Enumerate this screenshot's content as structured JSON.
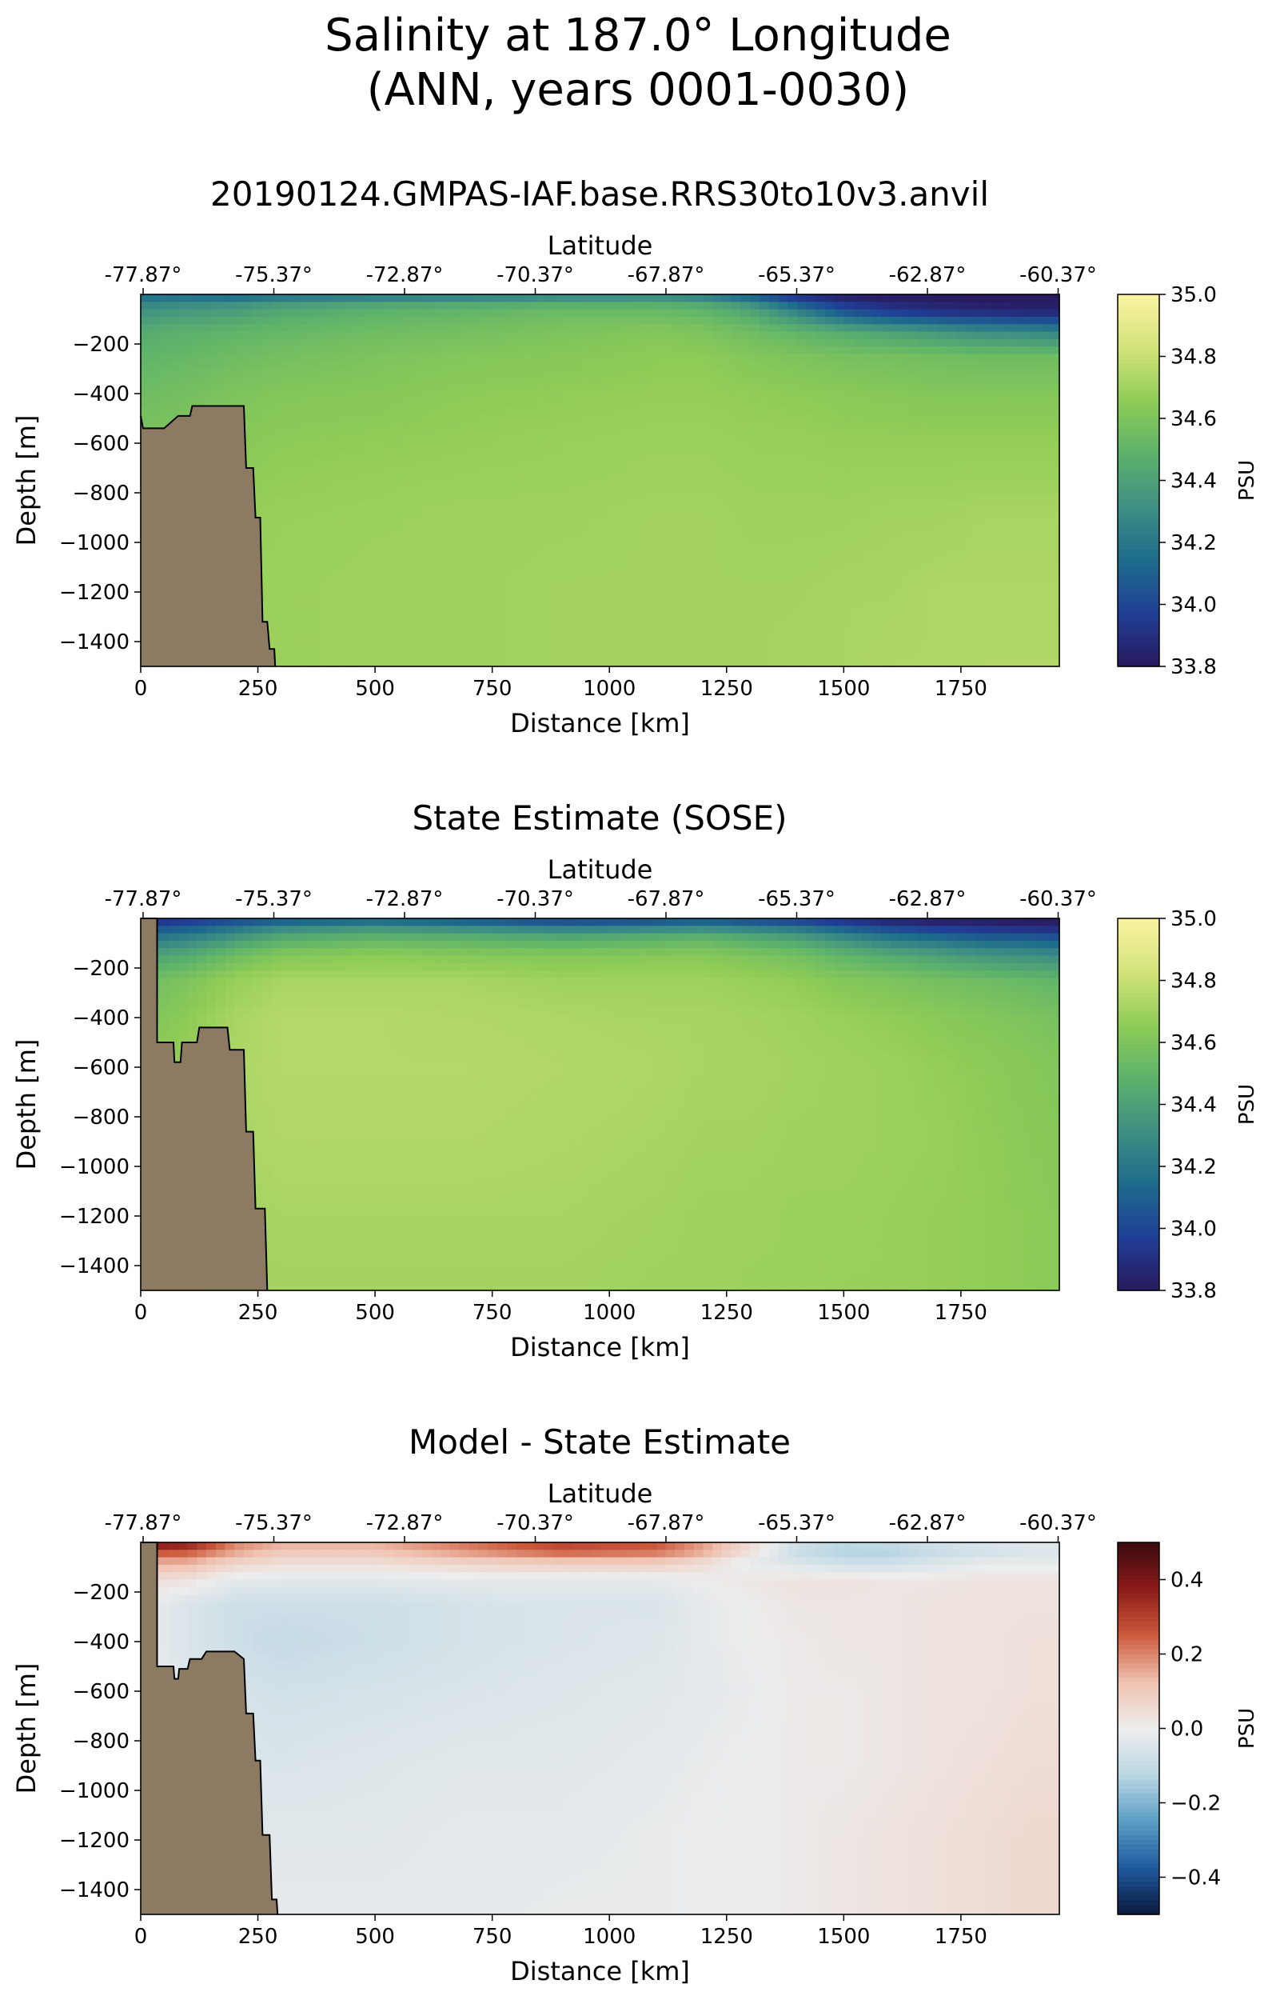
{
  "figure": {
    "title_line1": "Salinity at 187.0° Longitude",
    "title_line2": "(ANN, years 0001-0030)"
  },
  "panels": [
    {
      "title": "20190124.GMPAS-IAF.base.RRS30to10v3.anvil",
      "colorbar_label": "PSU",
      "colorbar_ticks": [
        "33.8",
        "34.0",
        "34.2",
        "34.4",
        "34.6",
        "34.8",
        "35.0"
      ]
    },
    {
      "title": "State Estimate (SOSE)",
      "colorbar_label": "PSU",
      "colorbar_ticks": [
        "33.8",
        "34.0",
        "34.2",
        "34.4",
        "34.6",
        "34.8",
        "35.0"
      ]
    },
    {
      "title": "Model - State Estimate",
      "colorbar_label": "PSU",
      "colorbar_ticks": [
        "−0.4",
        "−0.2",
        "0.0",
        "0.2",
        "0.4"
      ]
    }
  ],
  "axes": {
    "xlabel": "Distance [km]",
    "ylabel": "Depth [m]",
    "top_xlabel": "Latitude",
    "x_ticks": [
      "0",
      "250",
      "500",
      "750",
      "1000",
      "1250",
      "1500",
      "1750"
    ],
    "y_ticks": [
      "−200",
      "−400",
      "−600",
      "−800",
      "−1000",
      "−1200",
      "−1400"
    ],
    "lat_ticks": [
      "-77.87°",
      "-75.37°",
      "-72.87°",
      "-70.37°",
      "-67.87°",
      "-65.37°",
      "-62.87°",
      "-60.37°"
    ]
  },
  "colors": {
    "land": "#8c7b62",
    "salinity_cmap": [
      "#29195f",
      "#203f96",
      "#1d6c8c",
      "#3e8f83",
      "#5cb26b",
      "#8fcc56",
      "#d3e37a",
      "#fbf3a2"
    ],
    "diff_cmap": [
      "#0b1a3f",
      "#1f5a9e",
      "#5a9ec4",
      "#bcd7e4",
      "#ededed",
      "#f0c2b0",
      "#cc5a3c",
      "#8b1a18",
      "#3b0b11"
    ]
  },
  "chart_data": [
    {
      "type": "heatmap",
      "title": "20190124.GMPAS-IAF.base.RRS30to10v3.anvil",
      "xlabel": "Distance [km]",
      "ylabel": "Depth [m]",
      "top_xlabel": "Latitude",
      "xlim": [
        0,
        1960
      ],
      "ylim": [
        -1500,
        0
      ],
      "x_ticks": [
        0,
        250,
        500,
        750,
        1000,
        1250,
        1500,
        1750
      ],
      "y_ticks": [
        -200,
        -400,
        -600,
        -800,
        -1000,
        -1200,
        -1400
      ],
      "lat_ticks": [
        -77.87,
        -75.37,
        -72.87,
        -70.37,
        -67.87,
        -65.37,
        -62.87,
        -60.37
      ],
      "colorbar": {
        "label": "PSU",
        "range": [
          33.8,
          35.0
        ],
        "ticks": [
          33.8,
          34.0,
          34.2,
          34.4,
          34.6,
          34.8,
          35.0
        ]
      },
      "x_km": [
        0,
        100,
        200,
        300,
        500,
        700,
        900,
        1100,
        1200,
        1300,
        1400,
        1500,
        1600,
        1700,
        1800,
        1900,
        1960
      ],
      "depth_m": [
        0,
        -30,
        -80,
        -150,
        -250,
        -400,
        -600,
        -900,
        -1200,
        -1500
      ],
      "values": [
        [
          34.12,
          34.1,
          34.05,
          34.1,
          34.12,
          34.15,
          34.18,
          34.2,
          34.15,
          34.0,
          33.85,
          33.8,
          33.8,
          33.8,
          33.8,
          33.8,
          33.8
        ],
        [
          34.25,
          34.28,
          34.3,
          34.35,
          34.4,
          34.42,
          34.45,
          34.45,
          34.42,
          34.3,
          34.05,
          33.9,
          33.85,
          33.82,
          33.8,
          33.8,
          33.8
        ],
        [
          34.35,
          34.38,
          34.4,
          34.45,
          34.5,
          34.52,
          34.55,
          34.55,
          34.52,
          34.45,
          34.3,
          34.1,
          34.0,
          33.95,
          33.92,
          33.9,
          33.9
        ],
        [
          34.45,
          34.48,
          34.5,
          34.52,
          34.55,
          34.57,
          34.6,
          34.62,
          34.6,
          34.55,
          34.5,
          34.45,
          34.4,
          34.35,
          34.3,
          34.28,
          34.25
        ],
        [
          34.5,
          34.52,
          34.55,
          34.57,
          34.6,
          34.62,
          34.63,
          34.65,
          34.65,
          34.62,
          34.6,
          34.58,
          34.57,
          34.56,
          34.55,
          34.55,
          34.55
        ],
        [
          34.55,
          34.57,
          34.6,
          34.62,
          34.63,
          34.65,
          34.66,
          34.67,
          34.67,
          34.66,
          34.65,
          34.64,
          34.63,
          34.62,
          34.62,
          34.62,
          34.62
        ],
        [
          34.6,
          34.62,
          34.63,
          34.65,
          34.66,
          34.67,
          34.68,
          34.69,
          34.69,
          34.68,
          34.68,
          34.67,
          34.67,
          34.67,
          34.67,
          34.67,
          34.67
        ],
        [
          34.65,
          34.66,
          34.67,
          34.68,
          34.69,
          34.7,
          34.7,
          34.71,
          34.71,
          34.7,
          34.7,
          34.7,
          34.71,
          34.71,
          34.72,
          34.72,
          34.72
        ],
        [
          34.66,
          34.67,
          34.68,
          34.69,
          34.7,
          34.7,
          34.71,
          34.71,
          34.71,
          34.71,
          34.71,
          34.72,
          34.72,
          34.73,
          34.73,
          34.73,
          34.73
        ],
        [
          34.67,
          34.67,
          34.68,
          34.69,
          34.7,
          34.7,
          34.71,
          34.71,
          34.71,
          34.71,
          34.72,
          34.72,
          34.73,
          34.73,
          34.74,
          34.74,
          34.74
        ]
      ],
      "bathymetry_km_depth": [
        [
          0,
          -490
        ],
        [
          5,
          -540
        ],
        [
          50,
          -540
        ],
        [
          80,
          -490
        ],
        [
          105,
          -490
        ],
        [
          110,
          -450
        ],
        [
          200,
          -450
        ],
        [
          220,
          -450
        ],
        [
          225,
          -700
        ],
        [
          240,
          -700
        ],
        [
          245,
          -900
        ],
        [
          255,
          -900
        ],
        [
          260,
          -1320
        ],
        [
          270,
          -1320
        ],
        [
          275,
          -1430
        ],
        [
          285,
          -1430
        ],
        [
          287,
          -1500
        ]
      ]
    },
    {
      "type": "heatmap",
      "title": "State Estimate (SOSE)",
      "xlabel": "Distance [km]",
      "ylabel": "Depth [m]",
      "top_xlabel": "Latitude",
      "xlim": [
        0,
        1960
      ],
      "ylim": [
        -1500,
        0
      ],
      "x_ticks": [
        0,
        250,
        500,
        750,
        1000,
        1250,
        1500,
        1750
      ],
      "y_ticks": [
        -200,
        -400,
        -600,
        -800,
        -1000,
        -1200,
        -1400
      ],
      "lat_ticks": [
        -77.87,
        -75.37,
        -72.87,
        -70.37,
        -67.87,
        -65.37,
        -62.87,
        -60.37
      ],
      "colorbar": {
        "label": "PSU",
        "range": [
          33.8,
          35.0
        ],
        "ticks": [
          33.8,
          34.0,
          34.2,
          34.4,
          34.6,
          34.8,
          35.0
        ]
      },
      "x_km": [
        0,
        100,
        200,
        300,
        500,
        700,
        900,
        1100,
        1200,
        1300,
        1400,
        1500,
        1600,
        1700,
        1800,
        1900,
        1960
      ],
      "depth_m": [
        0,
        -30,
        -80,
        -150,
        -250,
        -400,
        -600,
        -900,
        -1200,
        -1500
      ],
      "values": [
        [
          33.85,
          33.9,
          33.95,
          34.0,
          34.05,
          34.0,
          33.9,
          33.95,
          34.0,
          33.95,
          33.9,
          33.85,
          33.82,
          33.8,
          33.8,
          33.8,
          33.8
        ],
        [
          34.0,
          34.05,
          34.15,
          34.25,
          34.3,
          34.25,
          34.2,
          34.22,
          34.25,
          34.2,
          34.15,
          34.05,
          33.95,
          33.9,
          33.88,
          33.85,
          33.85
        ],
        [
          34.2,
          34.25,
          34.35,
          34.45,
          34.5,
          34.48,
          34.45,
          34.48,
          34.5,
          34.45,
          34.4,
          34.3,
          34.2,
          34.15,
          34.1,
          34.08,
          34.05
        ],
        [
          34.4,
          34.45,
          34.55,
          34.62,
          34.65,
          34.63,
          34.62,
          34.63,
          34.63,
          34.6,
          34.57,
          34.5,
          34.45,
          34.4,
          34.35,
          34.32,
          34.3
        ],
        [
          34.55,
          34.6,
          34.68,
          34.72,
          34.72,
          34.72,
          34.7,
          34.7,
          34.7,
          34.68,
          34.66,
          34.62,
          34.6,
          34.57,
          34.55,
          34.52,
          34.5
        ],
        [
          34.6,
          34.65,
          34.72,
          34.75,
          34.75,
          34.74,
          34.73,
          34.72,
          34.72,
          34.71,
          34.7,
          34.68,
          34.66,
          34.64,
          34.62,
          34.6,
          34.58
        ],
        [
          34.65,
          34.68,
          34.73,
          34.75,
          34.75,
          34.75,
          34.74,
          34.73,
          34.72,
          34.72,
          34.71,
          34.7,
          34.69,
          34.67,
          34.65,
          34.63,
          34.62
        ],
        [
          34.7,
          34.7,
          34.72,
          34.74,
          34.74,
          34.74,
          34.73,
          34.72,
          34.71,
          34.71,
          34.7,
          34.7,
          34.69,
          34.68,
          34.66,
          34.64,
          34.63
        ],
        [
          34.7,
          34.7,
          34.71,
          34.72,
          34.72,
          34.72,
          34.72,
          34.71,
          34.7,
          34.7,
          34.69,
          34.69,
          34.68,
          34.67,
          34.66,
          34.65,
          34.64
        ],
        [
          34.7,
          34.7,
          34.7,
          34.71,
          34.71,
          34.71,
          34.71,
          34.7,
          34.7,
          34.69,
          34.69,
          34.68,
          34.68,
          34.67,
          34.66,
          34.65,
          34.64
        ]
      ],
      "bathymetry_km_depth": [
        [
          0,
          0
        ],
        [
          35,
          0
        ],
        [
          35,
          -500
        ],
        [
          70,
          -500
        ],
        [
          72,
          -580
        ],
        [
          85,
          -580
        ],
        [
          88,
          -500
        ],
        [
          120,
          -500
        ],
        [
          125,
          -440
        ],
        [
          185,
          -440
        ],
        [
          190,
          -530
        ],
        [
          220,
          -530
        ],
        [
          225,
          -860
        ],
        [
          240,
          -860
        ],
        [
          245,
          -1170
        ],
        [
          265,
          -1170
        ],
        [
          270,
          -1500
        ]
      ]
    },
    {
      "type": "heatmap",
      "title": "Model - State Estimate",
      "xlabel": "Distance [km]",
      "ylabel": "Depth [m]",
      "top_xlabel": "Latitude",
      "xlim": [
        0,
        1960
      ],
      "ylim": [
        -1500,
        0
      ],
      "x_ticks": [
        0,
        250,
        500,
        750,
        1000,
        1250,
        1500,
        1750
      ],
      "y_ticks": [
        -200,
        -400,
        -600,
        -800,
        -1000,
        -1200,
        -1400
      ],
      "lat_ticks": [
        -77.87,
        -75.37,
        -72.87,
        -70.37,
        -67.87,
        -65.37,
        -62.87,
        -60.37
      ],
      "colorbar": {
        "label": "PSU",
        "range": [
          -0.5,
          0.5
        ],
        "ticks": [
          -0.4,
          -0.2,
          0.0,
          0.2,
          0.4
        ]
      },
      "x_km": [
        0,
        100,
        200,
        300,
        500,
        700,
        900,
        1100,
        1200,
        1300,
        1400,
        1500,
        1600,
        1700,
        1800,
        1900,
        1960
      ],
      "depth_m": [
        0,
        -30,
        -80,
        -150,
        -250,
        -400,
        -600,
        -900,
        -1200,
        -1500
      ],
      "values": [
        [
          0.45,
          0.4,
          0.2,
          0.15,
          0.15,
          0.22,
          0.28,
          0.25,
          0.15,
          0.05,
          -0.05,
          -0.1,
          -0.08,
          -0.05,
          -0.03,
          -0.02,
          -0.02
        ],
        [
          0.3,
          0.28,
          0.18,
          0.12,
          0.12,
          0.2,
          0.28,
          0.25,
          0.18,
          0.05,
          -0.1,
          -0.15,
          -0.15,
          -0.1,
          -0.08,
          -0.05,
          -0.05
        ],
        [
          0.15,
          0.15,
          0.08,
          0.05,
          0.05,
          0.08,
          0.1,
          0.1,
          0.05,
          -0.02,
          -0.05,
          -0.08,
          -0.08,
          -0.05,
          -0.02,
          -0.02,
          -0.02
        ],
        [
          0.05,
          0.03,
          -0.02,
          -0.03,
          -0.03,
          -0.02,
          -0.02,
          -0.02,
          0.0,
          0.02,
          0.03,
          0.03,
          0.02,
          0.02,
          0.03,
          0.03,
          0.03
        ],
        [
          0.0,
          -0.05,
          -0.08,
          -0.08,
          -0.08,
          -0.06,
          -0.05,
          -0.05,
          -0.02,
          0.0,
          0.02,
          0.02,
          0.02,
          0.03,
          0.03,
          0.03,
          0.03
        ],
        [
          0.0,
          -0.05,
          -0.08,
          -0.1,
          -0.08,
          -0.06,
          -0.05,
          -0.04,
          -0.02,
          0.0,
          0.01,
          0.02,
          0.02,
          0.03,
          0.03,
          0.04,
          0.04
        ],
        [
          0.0,
          -0.04,
          -0.06,
          -0.07,
          -0.06,
          -0.05,
          -0.04,
          -0.03,
          -0.02,
          -0.01,
          0.01,
          0.01,
          0.02,
          0.03,
          0.03,
          0.04,
          0.04
        ],
        [
          0.0,
          -0.02,
          -0.04,
          -0.05,
          -0.04,
          -0.03,
          -0.03,
          -0.02,
          -0.01,
          0.0,
          0.01,
          0.01,
          0.02,
          0.03,
          0.04,
          0.05,
          0.05
        ],
        [
          0.0,
          -0.02,
          -0.03,
          -0.03,
          -0.03,
          -0.02,
          -0.02,
          -0.01,
          0.0,
          0.0,
          0.01,
          0.02,
          0.03,
          0.04,
          0.05,
          0.06,
          0.06
        ],
        [
          0.0,
          -0.01,
          -0.02,
          -0.02,
          -0.02,
          -0.02,
          -0.01,
          -0.01,
          0.0,
          0.0,
          0.01,
          0.02,
          0.03,
          0.04,
          0.05,
          0.06,
          0.06
        ]
      ],
      "bathymetry_km_depth": [
        [
          0,
          0
        ],
        [
          35,
          0
        ],
        [
          35,
          -500
        ],
        [
          70,
          -500
        ],
        [
          72,
          -550
        ],
        [
          80,
          -550
        ],
        [
          82,
          -510
        ],
        [
          100,
          -510
        ],
        [
          105,
          -470
        ],
        [
          130,
          -470
        ],
        [
          140,
          -440
        ],
        [
          200,
          -440
        ],
        [
          220,
          -470
        ],
        [
          225,
          -690
        ],
        [
          240,
          -690
        ],
        [
          245,
          -880
        ],
        [
          255,
          -880
        ],
        [
          260,
          -1180
        ],
        [
          275,
          -1180
        ],
        [
          280,
          -1440
        ],
        [
          290,
          -1440
        ],
        [
          292,
          -1500
        ]
      ]
    }
  ]
}
